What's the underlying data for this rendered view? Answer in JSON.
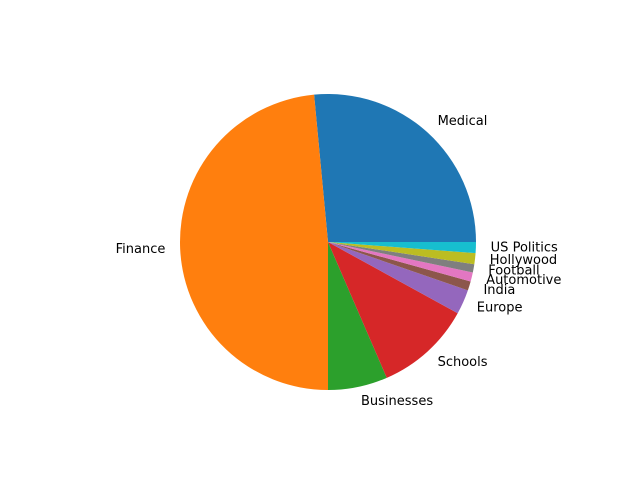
{
  "chart_data": {
    "type": "pie",
    "title": "",
    "start_angle_deg": 0,
    "direction": "counterclockwise",
    "slices": [
      {
        "label": "Medical",
        "value": 26.5,
        "color": "#1f77b4"
      },
      {
        "label": "Finance",
        "value": 48.5,
        "color": "#ff7f0e"
      },
      {
        "label": "Businesses",
        "value": 6.5,
        "color": "#2ca02c"
      },
      {
        "label": "Schools",
        "value": 10.5,
        "color": "#d62728"
      },
      {
        "label": "Europe",
        "value": 2.7,
        "color": "#9467bd"
      },
      {
        "label": "India",
        "value": 1.0,
        "color": "#8c564b"
      },
      {
        "label": "Automotive",
        "value": 1.0,
        "color": "#e377c2"
      },
      {
        "label": "Football",
        "value": 0.9,
        "color": "#7f7f7f"
      },
      {
        "label": "Hollywood",
        "value": 1.2,
        "color": "#bcbd22"
      },
      {
        "label": "US Politics",
        "value": 1.2,
        "color": "#17becf"
      }
    ]
  }
}
